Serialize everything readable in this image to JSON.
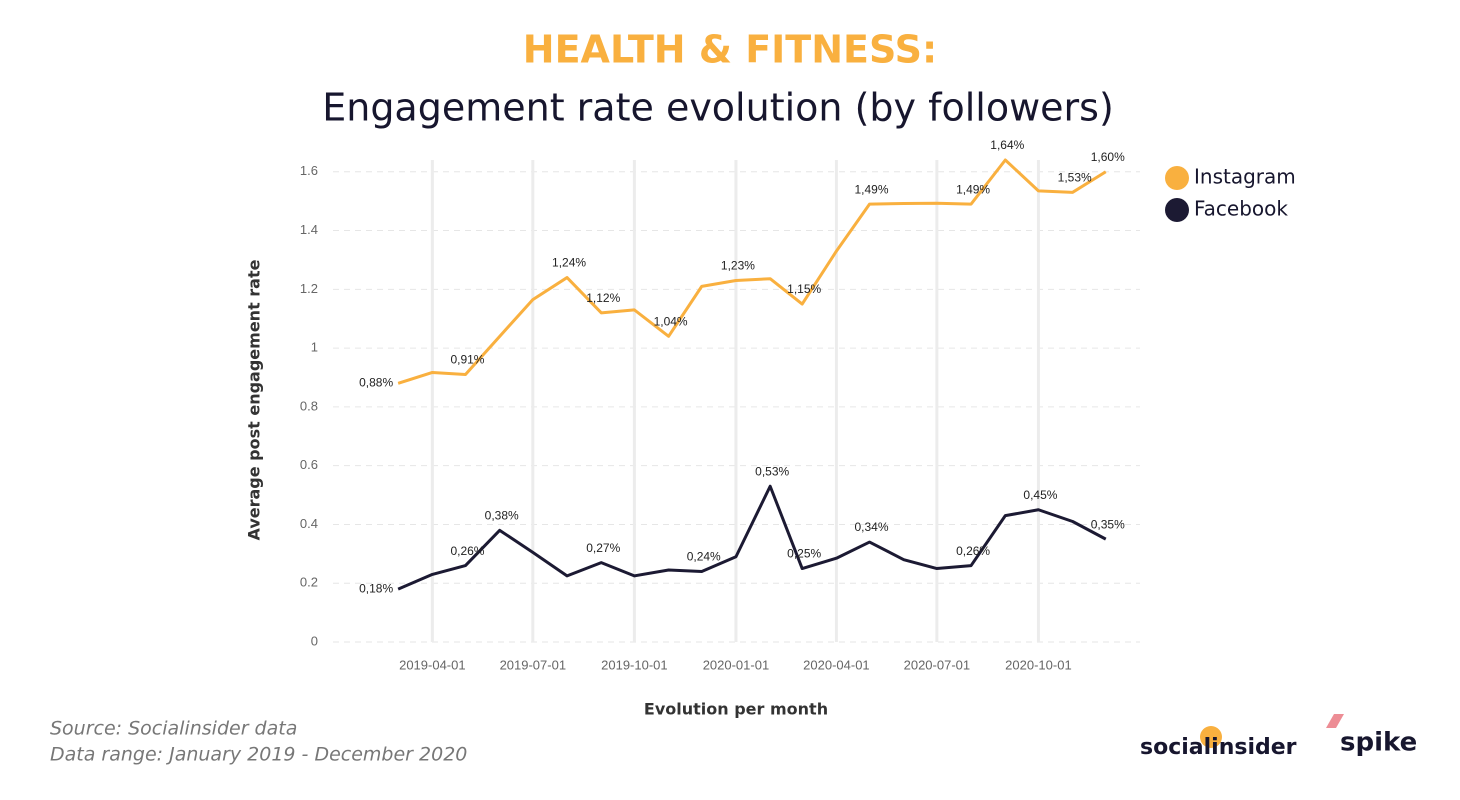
{
  "chart_data": {
    "type": "line",
    "title": "HEALTH & FITNESS:",
    "subtitle": "Engagement rate evolution (by followers)",
    "y_label": "Average post engagement rate",
    "x_label": "Evolution per month",
    "x": [
      "2019-03-01",
      "2019-04-01",
      "2019-05-01",
      "2019-06-01",
      "2019-07-01",
      "2019-08-01",
      "2019-09-01",
      "2019-10-01",
      "2019-11-01",
      "2019-12-01",
      "2020-01-01",
      "2020-02-01",
      "2020-03-01",
      "2020-04-01",
      "2020-05-01",
      "2020-06-01",
      "2020-07-01",
      "2020-08-01",
      "2020-09-01",
      "2020-10-01",
      "2020-11-01",
      "2020-12-01"
    ],
    "xlim": [
      "2019-01-01",
      "2021-01-01"
    ],
    "xticks": [
      "2019-04-01",
      "2019-07-01",
      "2019-10-01",
      "2020-01-01",
      "2020-04-01",
      "2020-07-01",
      "2020-10-01"
    ],
    "ylim": [
      0,
      1.64
    ],
    "yticks": [
      0,
      0.2,
      0.4,
      0.6,
      0.8,
      1,
      1.2,
      1.4,
      1.6
    ],
    "grid": true,
    "legend": "right",
    "series": [
      {
        "name": "Instagram",
        "color": "#f9b03f",
        "values": [
          0.88,
          0.917,
          0.91,
          1.04,
          1.165,
          1.24,
          1.12,
          1.13,
          1.04,
          1.21,
          1.23,
          1.236,
          1.15,
          1.33,
          1.49,
          1.492,
          1.493,
          1.49,
          1.64,
          1.535,
          1.53,
          1.6
        ],
        "value_labels": [
          "0,88%",
          null,
          "0,91%",
          null,
          null,
          "1,24%",
          "1,12%",
          null,
          "1,04%",
          null,
          "1,23%",
          null,
          "1,15%",
          null,
          "1,49%",
          null,
          null,
          "1,49%",
          "1,64%",
          null,
          "1,53%",
          "1,60%"
        ]
      },
      {
        "name": "Facebook",
        "color": "#1c1a33",
        "values": [
          0.18,
          0.23,
          0.26,
          0.38,
          0.305,
          0.225,
          0.27,
          0.225,
          0.245,
          0.24,
          0.29,
          0.53,
          0.25,
          0.285,
          0.34,
          0.28,
          0.25,
          0.26,
          0.43,
          0.45,
          0.41,
          0.35
        ],
        "value_labels": [
          "0,18%",
          null,
          "0,26%",
          "0,38%",
          null,
          null,
          "0,27%",
          null,
          null,
          "0,24%",
          null,
          "0,53%",
          "0,25%",
          null,
          "0,34%",
          null,
          null,
          "0,26%",
          null,
          "0,45%",
          null,
          "0,35%"
        ]
      }
    ]
  },
  "footer": {
    "source": "Source: Socialinsider data",
    "range": "Data range: January 2019 - December 2020",
    "logo1": "socialinsider",
    "logo2": "spike"
  }
}
